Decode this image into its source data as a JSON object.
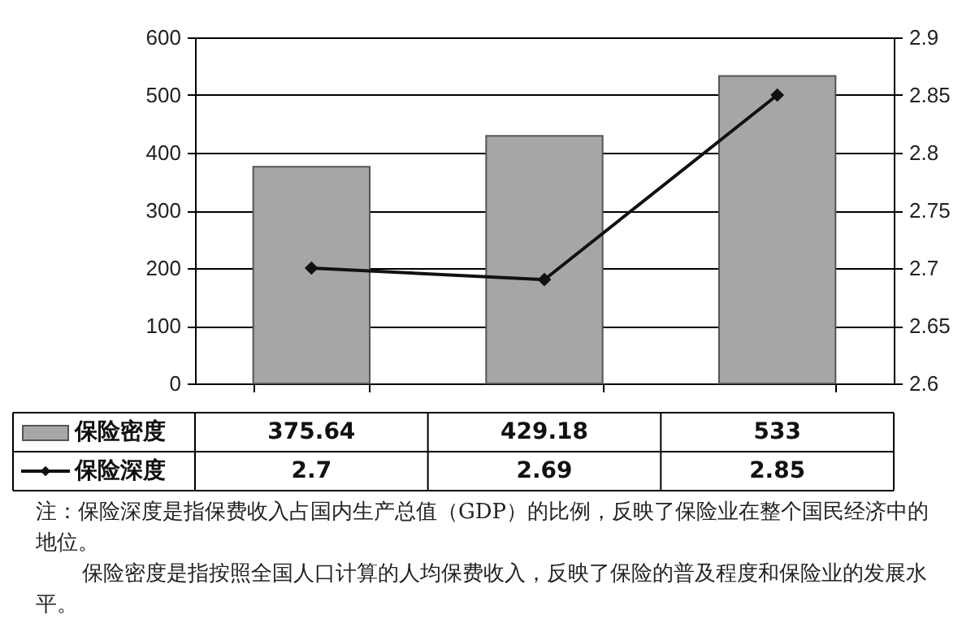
{
  "chart_data": {
    "type": "bar",
    "categories": [
      null,
      null,
      null
    ],
    "series": [
      {
        "name": "保险密度",
        "color": "#a6a6a6",
        "values": [
          375.64,
          429.18,
          533
        ]
      },
      {
        "name": "保险深度",
        "type": "line",
        "axis": "y2",
        "color": "#111111",
        "marker": "diamond",
        "values": [
          2.7,
          2.69,
          2.85
        ]
      }
    ],
    "ylim": [
      0,
      600
    ],
    "yticks": [
      0,
      100,
      200,
      300,
      400,
      500,
      600
    ],
    "y2lim": [
      2.6,
      2.9
    ],
    "y2ticks": [
      2.6,
      2.65,
      2.7,
      2.75,
      2.8,
      2.85,
      2.9
    ],
    "grid": "y",
    "legend": "bottom",
    "data_labels": true,
    "annotations": [
      "注：保险深度是指保费收入占国内生产总值（GDP）的比例，反映了保险业在整个国民经济中的地位。",
      "保险密度是指按照全国人口计算的人均保费收入，反映了保险的普及程度和保险业的发展水平。"
    ]
  }
}
